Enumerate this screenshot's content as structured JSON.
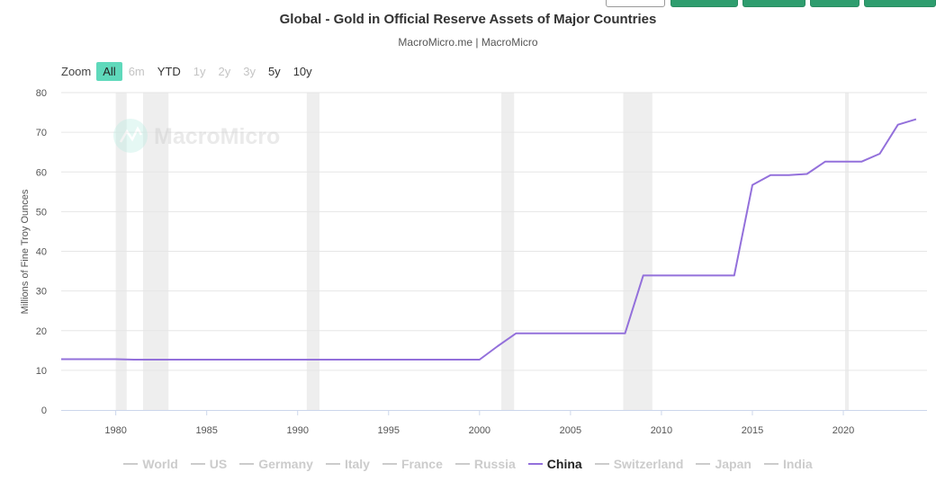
{
  "header": {
    "title": "Global - Gold in Official Reserve Assets of Major Countries",
    "subtitle": "MacroMicro.me | MacroMicro"
  },
  "zoom": {
    "label": "Zoom",
    "buttons": [
      {
        "label": "All",
        "state": "active"
      },
      {
        "label": "6m",
        "state": "disabled"
      },
      {
        "label": "YTD",
        "state": "enabled"
      },
      {
        "label": "1y",
        "state": "disabled"
      },
      {
        "label": "2y",
        "state": "disabled"
      },
      {
        "label": "3y",
        "state": "disabled"
      },
      {
        "label": "5y",
        "state": "enabled"
      },
      {
        "label": "10y",
        "state": "enabled"
      }
    ]
  },
  "watermark": {
    "text": "MacroMicro"
  },
  "colors": {
    "line": "#9370db",
    "recession": "#eeeeee",
    "grid": "#e6e6e6",
    "legend_inactive": "#cccccc",
    "zoom_active": "#5fd9bb",
    "button_green": "#2e9d6e"
  },
  "chart_data": {
    "type": "line",
    "ylabel": "Millions of Fine Troy Ounces",
    "xlim": [
      1977.0,
      2024.6
    ],
    "ylim": [
      0,
      80
    ],
    "xticks": [
      1980,
      1985,
      1990,
      1995,
      2000,
      2005,
      2010,
      2015,
      2020
    ],
    "yticks": [
      0,
      10,
      20,
      30,
      40,
      50,
      60,
      70,
      80
    ],
    "grid": true,
    "legend_position": "bottom",
    "recession_bands": [
      [
        1980.0,
        1980.6
      ],
      [
        1981.5,
        1982.9
      ],
      [
        1990.5,
        1991.2
      ],
      [
        2001.2,
        2001.9
      ],
      [
        2007.9,
        2009.5
      ],
      [
        2020.1,
        2020.3
      ]
    ],
    "series": [
      {
        "name": "China",
        "active": true,
        "x": [
          1977,
          1980,
          1981,
          1990,
          2000,
          2001,
          2002,
          2003,
          2004,
          2005,
          2006,
          2007,
          2008,
          2009,
          2010,
          2011,
          2012,
          2013,
          2014,
          2015,
          2016,
          2017,
          2018,
          2019,
          2020,
          2021,
          2022,
          2023,
          2024
        ],
        "y": [
          12.8,
          12.8,
          12.7,
          12.7,
          12.7,
          16.1,
          19.3,
          19.3,
          19.3,
          19.3,
          19.3,
          19.3,
          19.3,
          33.9,
          33.9,
          33.9,
          33.9,
          33.9,
          33.9,
          56.7,
          59.2,
          59.2,
          59.5,
          62.6,
          62.6,
          62.6,
          64.6,
          71.9,
          73.3
        ]
      }
    ],
    "legend": [
      {
        "name": "World",
        "active": false
      },
      {
        "name": "US",
        "active": false
      },
      {
        "name": "Germany",
        "active": false
      },
      {
        "name": "Italy",
        "active": false
      },
      {
        "name": "France",
        "active": false
      },
      {
        "name": "Russia",
        "active": false
      },
      {
        "name": "China",
        "active": true
      },
      {
        "name": "Switzerland",
        "active": false
      },
      {
        "name": "Japan",
        "active": false
      },
      {
        "name": "India",
        "active": false
      }
    ]
  }
}
